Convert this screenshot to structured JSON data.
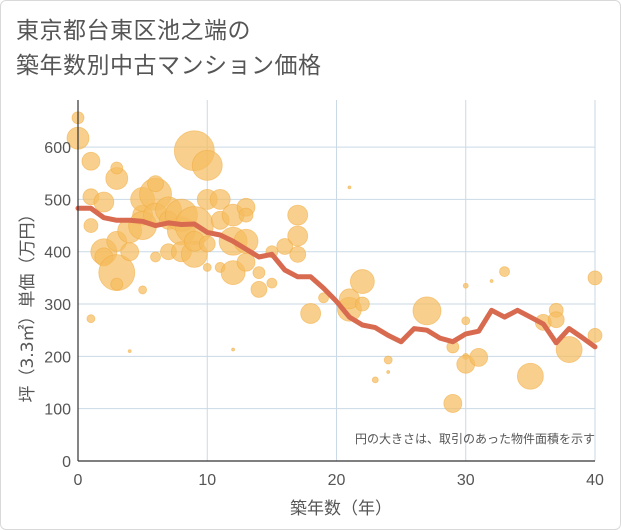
{
  "title": {
    "line1": "東京都台東区池之端の",
    "line2": "築年数別中古マンション価格"
  },
  "colors": {
    "bubble_fill": "#f5bd5f",
    "bubble_stroke": "#f0a93c",
    "line": "#d86a50",
    "grid": "#c9d9e6",
    "text": "#555555"
  },
  "chart_data": {
    "type": "scatter",
    "xlabel": "築年数（年）",
    "ylabel": "坪（3.3㎡）単価（万円）",
    "note": "円の大きさは、取引のあった物件面積を示す",
    "xlim": [
      0,
      40
    ],
    "ylim": [
      0,
      690
    ],
    "xticks": [
      0,
      10,
      20,
      30,
      40
    ],
    "yticks": [
      0,
      100,
      200,
      300,
      400,
      500,
      600
    ],
    "grid": true,
    "average_line": {
      "x": [
        0,
        1,
        2,
        3,
        4,
        5,
        6,
        7,
        8,
        9,
        10,
        11,
        12,
        13,
        14,
        15,
        16,
        17,
        18,
        19,
        20,
        21,
        22,
        23,
        24,
        25,
        26,
        27,
        28,
        29,
        30,
        31,
        32,
        33,
        34,
        35,
        36,
        37,
        38,
        39,
        40
      ],
      "y": [
        483,
        483,
        465,
        460,
        460,
        458,
        450,
        455,
        452,
        453,
        437,
        432,
        420,
        405,
        390,
        395,
        365,
        352,
        352,
        330,
        305,
        275,
        260,
        255,
        240,
        228,
        253,
        250,
        235,
        228,
        243,
        248,
        288,
        275,
        288,
        275,
        262,
        226,
        253,
        236,
        218
      ]
    },
    "bubbles": [
      {
        "x": 0,
        "y": 656,
        "r": 6
      },
      {
        "x": 0,
        "y": 617,
        "r": 11
      },
      {
        "x": 1,
        "y": 573,
        "r": 9
      },
      {
        "x": 1,
        "y": 505,
        "r": 8
      },
      {
        "x": 1,
        "y": 272,
        "r": 4
      },
      {
        "x": 1,
        "y": 450,
        "r": 7
      },
      {
        "x": 2,
        "y": 495,
        "r": 10
      },
      {
        "x": 2,
        "y": 400,
        "r": 13
      },
      {
        "x": 2,
        "y": 390,
        "r": 9
      },
      {
        "x": 3,
        "y": 540,
        "r": 11
      },
      {
        "x": 3,
        "y": 560,
        "r": 6
      },
      {
        "x": 3,
        "y": 360,
        "r": 18
      },
      {
        "x": 3,
        "y": 338,
        "r": 6
      },
      {
        "x": 3,
        "y": 420,
        "r": 10
      },
      {
        "x": 4,
        "y": 400,
        "r": 9
      },
      {
        "x": 4,
        "y": 210,
        "r": 1.5
      },
      {
        "x": 4,
        "y": 440,
        "r": 12
      },
      {
        "x": 5,
        "y": 470,
        "r": 10
      },
      {
        "x": 5,
        "y": 500,
        "r": 12
      },
      {
        "x": 5,
        "y": 327,
        "r": 4
      },
      {
        "x": 5,
        "y": 450,
        "r": 14
      },
      {
        "x": 6,
        "y": 510,
        "r": 16
      },
      {
        "x": 6,
        "y": 530,
        "r": 8
      },
      {
        "x": 6,
        "y": 390,
        "r": 5
      },
      {
        "x": 6,
        "y": 470,
        "r": 12
      },
      {
        "x": 7,
        "y": 480,
        "r": 13
      },
      {
        "x": 7,
        "y": 400,
        "r": 8
      },
      {
        "x": 7,
        "y": 460,
        "r": 9
      },
      {
        "x": 8,
        "y": 440,
        "r": 14
      },
      {
        "x": 8,
        "y": 470,
        "r": 16
      },
      {
        "x": 8,
        "y": 400,
        "r": 10
      },
      {
        "x": 9,
        "y": 593,
        "r": 20
      },
      {
        "x": 9,
        "y": 450,
        "r": 19
      },
      {
        "x": 9,
        "y": 395,
        "r": 13
      },
      {
        "x": 9,
        "y": 420,
        "r": 10
      },
      {
        "x": 10,
        "y": 565,
        "r": 15
      },
      {
        "x": 10,
        "y": 500,
        "r": 10
      },
      {
        "x": 10,
        "y": 415,
        "r": 8
      },
      {
        "x": 10,
        "y": 370,
        "r": 4
      },
      {
        "x": 11,
        "y": 500,
        "r": 10
      },
      {
        "x": 11,
        "y": 460,
        "r": 9
      },
      {
        "x": 11,
        "y": 370,
        "r": 5
      },
      {
        "x": 12,
        "y": 470,
        "r": 11
      },
      {
        "x": 12,
        "y": 420,
        "r": 14
      },
      {
        "x": 12,
        "y": 360,
        "r": 12
      },
      {
        "x": 12,
        "y": 213,
        "r": 1.5
      },
      {
        "x": 13,
        "y": 485,
        "r": 9
      },
      {
        "x": 13,
        "y": 420,
        "r": 12
      },
      {
        "x": 13,
        "y": 380,
        "r": 9
      },
      {
        "x": 13,
        "y": 470,
        "r": 7
      },
      {
        "x": 14,
        "y": 328,
        "r": 8
      },
      {
        "x": 14,
        "y": 360,
        "r": 6
      },
      {
        "x": 15,
        "y": 340,
        "r": 5
      },
      {
        "x": 15,
        "y": 400,
        "r": 6
      },
      {
        "x": 16,
        "y": 410,
        "r": 8
      },
      {
        "x": 17,
        "y": 470,
        "r": 10
      },
      {
        "x": 17,
        "y": 430,
        "r": 10
      },
      {
        "x": 17,
        "y": 395,
        "r": 8
      },
      {
        "x": 18,
        "y": 282,
        "r": 10
      },
      {
        "x": 19,
        "y": 312,
        "r": 5
      },
      {
        "x": 21,
        "y": 523,
        "r": 1.5
      },
      {
        "x": 21,
        "y": 290,
        "r": 12
      },
      {
        "x": 21,
        "y": 310,
        "r": 10
      },
      {
        "x": 22,
        "y": 343,
        "r": 12
      },
      {
        "x": 22,
        "y": 300,
        "r": 7
      },
      {
        "x": 23,
        "y": 155,
        "r": 3
      },
      {
        "x": 24,
        "y": 193,
        "r": 4
      },
      {
        "x": 24,
        "y": 170,
        "r": 1.5
      },
      {
        "x": 27,
        "y": 287,
        "r": 14
      },
      {
        "x": 29,
        "y": 218,
        "r": 6
      },
      {
        "x": 29,
        "y": 110,
        "r": 9
      },
      {
        "x": 30,
        "y": 335,
        "r": 2.5
      },
      {
        "x": 30,
        "y": 268,
        "r": 4
      },
      {
        "x": 30,
        "y": 200,
        "r": 3
      },
      {
        "x": 30,
        "y": 185,
        "r": 9
      },
      {
        "x": 31,
        "y": 198,
        "r": 9
      },
      {
        "x": 32,
        "y": 344,
        "r": 1.5
      },
      {
        "x": 33,
        "y": 362,
        "r": 5
      },
      {
        "x": 35,
        "y": 162,
        "r": 13
      },
      {
        "x": 36,
        "y": 265,
        "r": 8
      },
      {
        "x": 37,
        "y": 288,
        "r": 7
      },
      {
        "x": 37,
        "y": 270,
        "r": 8
      },
      {
        "x": 38,
        "y": 213,
        "r": 13
      },
      {
        "x": 40,
        "y": 350,
        "r": 7
      },
      {
        "x": 40,
        "y": 240,
        "r": 7
      }
    ]
  }
}
